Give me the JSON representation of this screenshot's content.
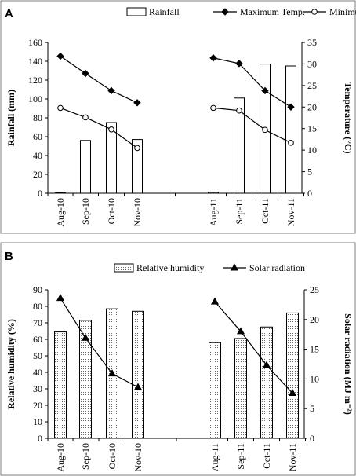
{
  "chart_data": [
    {
      "panel_label": "A",
      "type": "bar+line",
      "categories": [
        "Aug-10",
        "Sep-10",
        "Oct-10",
        "Nov-10",
        "Aug-11",
        "Sep-11",
        "Oct-11",
        "Nov-11"
      ],
      "ylabel": "Rainfall (mm)",
      "ylabel2": "Temperature (°C)",
      "ylim": [
        0,
        160
      ],
      "ylim2": [
        0,
        35
      ],
      "yticks": [
        0,
        20,
        40,
        60,
        80,
        100,
        120,
        140,
        160
      ],
      "yticks2": [
        0,
        5,
        10,
        15,
        20,
        25,
        30,
        35
      ],
      "legend": [
        "Rainfall",
        "Maximum Temp.",
        "Minimum Temp."
      ],
      "legend_position": "top",
      "series": [
        {
          "name": "Rainfall",
          "type": "bar",
          "axis": "left",
          "values": [
            0,
            56,
            75,
            57,
            1,
            101,
            137,
            135
          ]
        },
        {
          "name": "Maximum Temp.",
          "type": "line",
          "axis": "right",
          "marker": "filled-diamond",
          "values": [
            31.8,
            27.8,
            23.8,
            21.0,
            31.4,
            30.1,
            23.8,
            20.0
          ]
        },
        {
          "name": "Minimum Temp.",
          "type": "line",
          "axis": "right",
          "marker": "open-circle",
          "values": [
            19.8,
            17.6,
            14.8,
            10.5,
            19.8,
            19.2,
            14.7,
            11.7
          ]
        }
      ]
    },
    {
      "panel_label": "B",
      "type": "bar+line",
      "categories": [
        "Aug-10",
        "Sep-10",
        "Oct-10",
        "Nov-10",
        "Aug-11",
        "Sep-11",
        "Oct-11",
        "Nov-11"
      ],
      "ylabel": "Relative humidity (%)",
      "ylabel2": "Solar radiation (MJ m⁻²)",
      "ylim": [
        0,
        90
      ],
      "ylim2": [
        0,
        25
      ],
      "yticks": [
        0,
        10,
        20,
        30,
        40,
        50,
        60,
        70,
        80,
        90
      ],
      "yticks2": [
        0,
        5,
        10,
        15,
        20,
        25
      ],
      "legend": [
        "Relative humidity",
        "Solar radiation"
      ],
      "legend_position": "top",
      "series": [
        {
          "name": "Relative humidity",
          "type": "bar",
          "axis": "left",
          "pattern": "dotted",
          "values": [
            64.5,
            71.5,
            78.5,
            77,
            58,
            60.5,
            67.5,
            76
          ]
        },
        {
          "name": "Solar radiation",
          "type": "line",
          "axis": "right",
          "marker": "filled-triangle",
          "values": [
            23.6,
            16.9,
            10.9,
            8.6,
            23.0,
            18.0,
            12.3,
            7.6
          ]
        }
      ]
    }
  ]
}
